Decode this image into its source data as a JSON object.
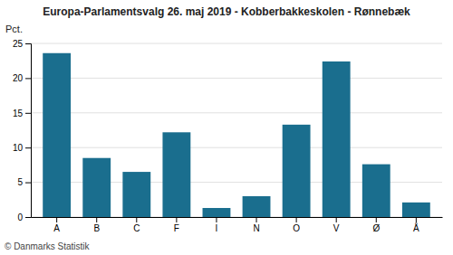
{
  "chart_data": {
    "type": "bar",
    "title": "Europa-Parlamentsvalg 26. maj 2019 - Kobberbakkeskolen - Rønnebæk",
    "ylabel": "Pct.",
    "footer": "© Danmarks Statistik",
    "categories": [
      "A",
      "B",
      "C",
      "F",
      "I",
      "N",
      "O",
      "V",
      "Ø",
      "Å"
    ],
    "values": [
      23.6,
      8.5,
      6.5,
      12.2,
      1.3,
      3.0,
      13.3,
      22.4,
      7.6,
      2.1
    ],
    "color": "#1a6e8e",
    "ylim": [
      0,
      25
    ],
    "yticks": [
      0,
      5,
      10,
      15,
      20,
      25
    ],
    "grid": true
  }
}
